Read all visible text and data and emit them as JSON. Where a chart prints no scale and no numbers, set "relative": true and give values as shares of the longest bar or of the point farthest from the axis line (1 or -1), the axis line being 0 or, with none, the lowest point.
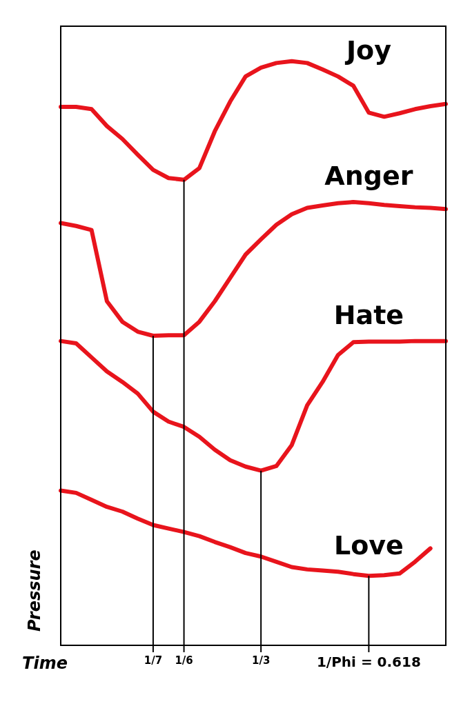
{
  "chart_data": {
    "type": "line",
    "relative": true,
    "xlabel": "Time",
    "ylabel": "Pressure",
    "categories": [
      null,
      null,
      null,
      null,
      null,
      null,
      "1/7",
      null,
      "1/6",
      null,
      null,
      null,
      null,
      "1/3",
      null,
      null,
      null,
      null,
      null,
      null,
      "1/Phi = 0.618",
      null,
      null,
      null,
      null,
      null
    ],
    "ref_lines": [
      {
        "axis": "x",
        "value": "1/7"
      },
      {
        "axis": "x",
        "value": "1/6"
      },
      {
        "axis": "x",
        "value": "1/3"
      },
      {
        "axis": "x",
        "value": "1/Phi = 0.618"
      }
    ],
    "marker": "none",
    "line_style": "solid",
    "legend": false,
    "grid": false,
    "series": [
      {
        "name": "Joy",
        "color": "#e8141c",
        "values": [
          0.922,
          0.922,
          0.918,
          0.889,
          0.867,
          0.84,
          0.814,
          0.8,
          0.797,
          0.817,
          0.88,
          0.931,
          0.974,
          0.989,
          0.997,
          1,
          0.997,
          0.986,
          0.974,
          0.958,
          0.912,
          0.905,
          0.911,
          0.918,
          0.923,
          0.927
        ]
      },
      {
        "name": "Anger",
        "color": "#e8141c",
        "values": [
          0.723,
          0.718,
          0.711,
          0.589,
          0.554,
          0.537,
          0.53,
          0.531,
          0.531,
          0.554,
          0.589,
          0.629,
          0.669,
          0.695,
          0.72,
          0.738,
          0.749,
          0.753,
          0.757,
          0.759,
          0.757,
          0.754,
          0.752,
          0.75,
          0.749,
          0.747
        ]
      },
      {
        "name": "Hate",
        "color": "#e8141c",
        "values": [
          0.521,
          0.517,
          0.493,
          0.469,
          0.451,
          0.431,
          0.4,
          0.383,
          0.374,
          0.357,
          0.335,
          0.317,
          0.306,
          0.299,
          0.307,
          0.343,
          0.411,
          0.451,
          0.497,
          0.519,
          0.52,
          0.52,
          0.52,
          0.521,
          0.521,
          0.521
        ]
      },
      {
        "name": "Love",
        "color": "#e8141c",
        "values": [
          0.265,
          0.261,
          0.249,
          0.237,
          0.229,
          0.217,
          0.206,
          0.2,
          0.194,
          0.187,
          0.177,
          0.168,
          0.158,
          0.152,
          0.143,
          0.134,
          0.13,
          0.128,
          0.126,
          0.122,
          0.119,
          0.12,
          0.123,
          0.143,
          0.166,
          null
        ]
      }
    ]
  }
}
